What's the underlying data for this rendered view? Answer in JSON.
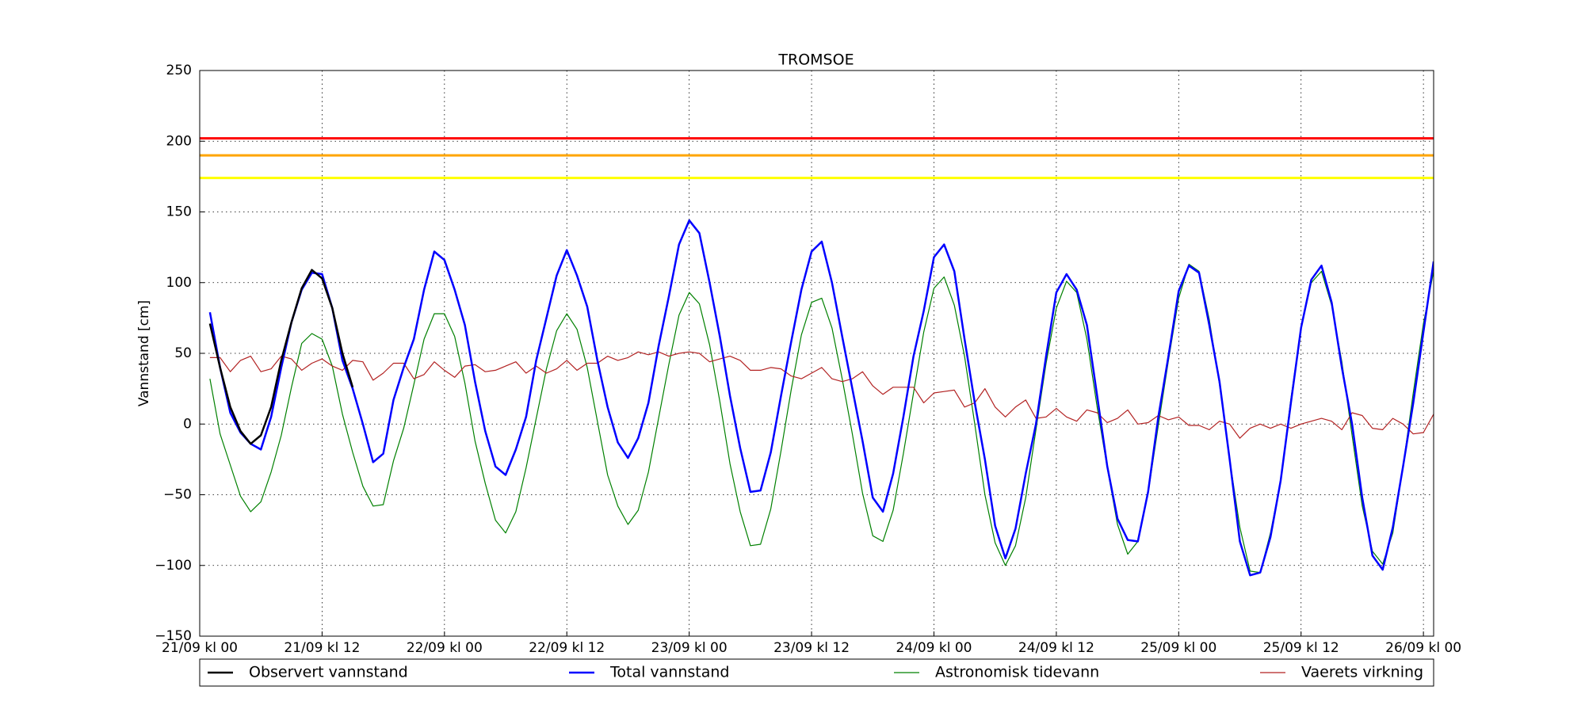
{
  "chart_data": {
    "type": "line",
    "title": "TROMSOE",
    "y_label": "Vannstand [cm]",
    "x": [
      1,
      2,
      3,
      4,
      5,
      6,
      7,
      8,
      9,
      10,
      11,
      12,
      13,
      14,
      15,
      16,
      17,
      18,
      19,
      20,
      21,
      22,
      23,
      24,
      25,
      26,
      27,
      28,
      29,
      30,
      31,
      32,
      33,
      34,
      35,
      36,
      37,
      38,
      39,
      40,
      41,
      42,
      43,
      44,
      45,
      46,
      47,
      48,
      49,
      50,
      51,
      52,
      53,
      54,
      55,
      56,
      57,
      58,
      59,
      60,
      61,
      62,
      63,
      64,
      65,
      66,
      67,
      68,
      69,
      70,
      71,
      72,
      73,
      74,
      75,
      76,
      77,
      78,
      79,
      80,
      81,
      82,
      83,
      84,
      85,
      86,
      87,
      88,
      89,
      90,
      91,
      92,
      93,
      94,
      95,
      96,
      97,
      98,
      99,
      100,
      101,
      102,
      103,
      104,
      105,
      106,
      107,
      108,
      109,
      110,
      111,
      112,
      113,
      114,
      115,
      116,
      117,
      118,
      119,
      120,
      121
    ],
    "series": [
      {
        "name": "Observert vannstand",
        "color": "#000000",
        "width": 2.5,
        "x": [
          1,
          2,
          3,
          4,
          5,
          6,
          7,
          8,
          9,
          10,
          11,
          12,
          13,
          14,
          15
        ],
        "values": [
          71,
          40,
          12,
          -5,
          -14,
          -8,
          12,
          45,
          72,
          96,
          109,
          103,
          82,
          50,
          26
        ]
      },
      {
        "name": "Total vannstand",
        "color": "#0000ff",
        "width": 2.5,
        "values": [
          79,
          40,
          8,
          -6,
          -14,
          -18,
          5,
          40,
          72,
          95,
          107,
          106,
          82,
          45,
          25,
          0,
          -27,
          -21,
          17,
          40,
          60,
          95,
          122,
          116,
          95,
          70,
          30,
          -5,
          -30,
          -36,
          -18,
          5,
          45,
          75,
          105,
          123,
          105,
          83,
          45,
          12,
          -13,
          -24,
          -10,
          15,
          55,
          90,
          127,
          144,
          135,
          100,
          62,
          20,
          -17,
          -48,
          -47,
          -20,
          20,
          58,
          95,
          122,
          129,
          100,
          62,
          25,
          -12,
          -52,
          -62,
          -35,
          5,
          48,
          80,
          118,
          127,
          108,
          60,
          15,
          -25,
          -72,
          -95,
          -74,
          -35,
          0,
          48,
          93,
          106,
          95,
          70,
          20,
          -30,
          -67,
          -82,
          -83,
          -48,
          5,
          48,
          94,
          112,
          107,
          70,
          30,
          -25,
          -83,
          -107,
          -105,
          -80,
          -40,
          15,
          68,
          102,
          112,
          86,
          40,
          0,
          -52,
          -93,
          -103,
          -73,
          -30,
          15,
          65,
          115
        ]
      },
      {
        "name": "Astronomisk tidevann",
        "color": "#008000",
        "width": 1.2,
        "values": [
          32,
          -7,
          -29,
          -51,
          -62,
          -55,
          -34,
          -8,
          26,
          57,
          64,
          60,
          41,
          7,
          -20,
          -44,
          -58,
          -57,
          -26,
          -3,
          28,
          60,
          78,
          78,
          62,
          29,
          -12,
          -42,
          -68,
          -77,
          -62,
          -31,
          4,
          39,
          66,
          78,
          67,
          40,
          2,
          -36,
          -58,
          -71,
          -61,
          -34,
          4,
          42,
          77,
          93,
          85,
          56,
          16,
          -28,
          -62,
          -86,
          -85,
          -60,
          -19,
          24,
          63,
          86,
          89,
          68,
          32,
          -7,
          -49,
          -79,
          -83,
          -61,
          -21,
          22,
          65,
          96,
          104,
          84,
          48,
          0,
          -50,
          -84,
          -100,
          -86,
          -52,
          -4,
          43,
          82,
          101,
          93,
          60,
          12,
          -31,
          -71,
          -92,
          -83,
          -49,
          -1,
          45,
          89,
          113,
          108,
          74,
          28,
          -25,
          -73,
          -104,
          -105,
          -77,
          -40,
          18,
          68,
          100,
          108,
          84,
          44,
          -8,
          -58,
          -90,
          -99,
          -77,
          -30,
          22,
          71,
          108
        ]
      },
      {
        "name": "Vaerets virkning",
        "color": "#b22222",
        "width": 1.2,
        "values": [
          47,
          47,
          37,
          45,
          48,
          37,
          39,
          48,
          46,
          38,
          43,
          46,
          41,
          38,
          45,
          44,
          31,
          36,
          43,
          43,
          32,
          35,
          44,
          38,
          33,
          41,
          42,
          37,
          38,
          41,
          44,
          36,
          41,
          36,
          39,
          45,
          38,
          43,
          43,
          48,
          45,
          47,
          51,
          49,
          51,
          48,
          50,
          51,
          50,
          44,
          46,
          48,
          45,
          38,
          38,
          40,
          39,
          34,
          32,
          36,
          40,
          32,
          30,
          32,
          37,
          27,
          21,
          26,
          26,
          26,
          15,
          22,
          23,
          24,
          12,
          15,
          25,
          12,
          5,
          12,
          17,
          4,
          5,
          11,
          5,
          2,
          10,
          8,
          1,
          4,
          10,
          0,
          1,
          6,
          3,
          5,
          -1,
          -1,
          -4,
          2,
          0,
          -10,
          -3,
          0,
          -3,
          0,
          -3,
          0,
          2,
          4,
          2,
          -4,
          8,
          6,
          -3,
          -4,
          4,
          0,
          -7,
          -6,
          7
        ]
      }
    ],
    "hlines": [
      {
        "value": 202,
        "color": "#ff0000"
      },
      {
        "value": 190,
        "color": "#ffa500"
      },
      {
        "value": 174,
        "color": "#ffff00"
      }
    ],
    "xlim": [
      0,
      121
    ],
    "xticks": [
      {
        "value": 0,
        "label": "21/09 kl 00"
      },
      {
        "value": 12,
        "label": "21/09 kl 12"
      },
      {
        "value": 24,
        "label": "22/09 kl 00"
      },
      {
        "value": 36,
        "label": "22/09 kl 12"
      },
      {
        "value": 48,
        "label": "23/09 kl 00"
      },
      {
        "value": 60,
        "label": "23/09 kl 12"
      },
      {
        "value": 72,
        "label": "24/09 kl 00"
      },
      {
        "value": 84,
        "label": "24/09 kl 12"
      },
      {
        "value": 96,
        "label": "25/09 kl 00"
      },
      {
        "value": 108,
        "label": "25/09 kl 12"
      },
      {
        "value": 120,
        "label": "26/09 kl 00"
      }
    ],
    "ylim": [
      -150,
      250
    ],
    "yticks": [
      {
        "value": -150,
        "label": "−150"
      },
      {
        "value": -100,
        "label": "−100"
      },
      {
        "value": -50,
        "label": "−50"
      },
      0,
      50,
      100,
      150,
      200,
      250
    ],
    "grid": true,
    "legend": "below"
  }
}
